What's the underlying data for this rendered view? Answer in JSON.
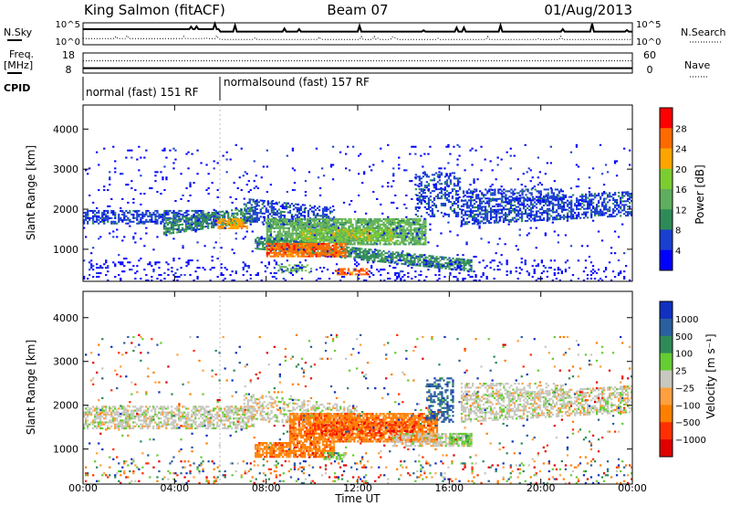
{
  "header": {
    "radar": "King Salmon (fitACF)",
    "beam": "Beam 07",
    "date": "01/Aug/2013"
  },
  "noise_panel": {
    "left_label": "N.Sky",
    "right_label": "N.Search",
    "left_ticks": [
      "10^5",
      "10^0"
    ],
    "right_ticks": [
      "10^5",
      "10^0"
    ]
  },
  "freq_panel": {
    "left_label_1": "Freq.",
    "left_label_2": "[MHz]",
    "right_label": "Nave",
    "left_ticks": [
      "18",
      "8"
    ],
    "right_ticks": [
      "60",
      "0"
    ]
  },
  "cpid": {
    "label": "CPID",
    "segments": [
      {
        "text": "normal (fast) 151 RF",
        "start_h": 0,
        "end_h": 6
      },
      {
        "text": "normalsound (fast) 157 RF",
        "start_h": 6,
        "end_h": 24
      }
    ]
  },
  "colors": {
    "power": [
      "#0000ff",
      "#1a3fd0",
      "#2e8b57",
      "#5fae5f",
      "#7ccd32",
      "#ffa500",
      "#ff6a00",
      "#ff0000"
    ],
    "velocity": [
      "#1030c0",
      "#2a5fa0",
      "#2e8b57",
      "#66cc33",
      "#c8c8c0",
      "#ffa040",
      "#ff7f00",
      "#ff3000",
      "#e00000"
    ],
    "ground": "#c8c8c0"
  },
  "chart_data": [
    {
      "type": "heatmap",
      "name": "power-panel",
      "xlabel": "",
      "ylabel": "Slant Range [km]",
      "x_ticks": [
        "00:00",
        "04:00",
        "08:00",
        "12:00",
        "16:00",
        "20:00",
        "00:00"
      ],
      "xlim_hours": [
        0,
        24
      ],
      "ylim_km": [
        200,
        4600
      ],
      "y_ticks": [
        1000,
        2000,
        3000,
        4000
      ],
      "colorbar": {
        "label": "Power [dB]",
        "ticks": [
          "4",
          "8",
          "12",
          "16",
          "20",
          "24",
          "28"
        ]
      },
      "features": [
        {
          "kind": "band",
          "t0": 0.0,
          "t1": 6.0,
          "r0": 1620,
          "r1": 1980,
          "slope": 0,
          "level": 1,
          "density": 0.55
        },
        {
          "kind": "band",
          "t0": 3.5,
          "t1": 7.5,
          "r0": 1350,
          "r1": 1750,
          "slope": 80,
          "level": 2,
          "density": 0.7
        },
        {
          "kind": "band",
          "t0": 5.8,
          "t1": 7.2,
          "r0": 1500,
          "r1": 1750,
          "slope": 0,
          "level": 5,
          "density": 0.8
        },
        {
          "kind": "band",
          "t0": 7.0,
          "t1": 11.0,
          "r0": 1700,
          "r1": 2250,
          "slope": -60,
          "level": 1,
          "density": 0.5
        },
        {
          "kind": "band",
          "t0": 8.0,
          "t1": 15.0,
          "r0": 1100,
          "r1": 1750,
          "slope": 0,
          "level": 3,
          "density": 0.8
        },
        {
          "kind": "band",
          "t0": 9.5,
          "t1": 13.5,
          "r0": 1200,
          "r1": 1500,
          "slope": 0,
          "level": 4,
          "density": 0.7
        },
        {
          "kind": "band",
          "t0": 7.5,
          "t1": 17.0,
          "r0": 1000,
          "r1": 1300,
          "slope": -60,
          "level": 2,
          "density": 0.75
        },
        {
          "kind": "band",
          "t0": 8.0,
          "t1": 11.5,
          "r0": 800,
          "r1": 1150,
          "slope": 0,
          "level": 6,
          "density": 0.85
        },
        {
          "kind": "band",
          "t0": 8.5,
          "t1": 10.0,
          "r0": 400,
          "r1": 600,
          "slope": 0,
          "level": 3,
          "density": 0.4
        },
        {
          "kind": "band",
          "t0": 11.0,
          "t1": 12.5,
          "r0": 350,
          "r1": 520,
          "slope": 0,
          "level": 6,
          "density": 0.6
        },
        {
          "kind": "band",
          "t0": 14.5,
          "t1": 16.5,
          "r0": 1800,
          "r1": 2900,
          "slope": 0,
          "level": 1,
          "density": 0.35
        },
        {
          "kind": "band",
          "t0": 16.5,
          "t1": 24.0,
          "r0": 1600,
          "r1": 2200,
          "slope": 30,
          "level": 1,
          "density": 0.55
        },
        {
          "kind": "band",
          "t0": 16.5,
          "t1": 21.0,
          "r0": 2200,
          "r1": 2500,
          "slope": 0,
          "level": 1,
          "density": 0.45
        },
        {
          "kind": "band",
          "t0": 0.0,
          "t1": 24.0,
          "r0": 200,
          "r1": 700,
          "slope": 0,
          "level": 0,
          "density": 0.12
        },
        {
          "kind": "band",
          "t0": 0.0,
          "t1": 24.0,
          "r0": 700,
          "r1": 3600,
          "slope": 0,
          "level": 0,
          "density": 0.025
        }
      ]
    },
    {
      "type": "heatmap",
      "name": "velocity-panel",
      "xlabel": "Time UT",
      "ylabel": "Slant Range [km]",
      "x_ticks": [
        "00:00",
        "04:00",
        "08:00",
        "12:00",
        "16:00",
        "20:00",
        "00:00"
      ],
      "xlim_hours": [
        0,
        24
      ],
      "ylim_km": [
        200,
        4600
      ],
      "y_ticks": [
        1000,
        2000,
        3000,
        4000
      ],
      "colorbar": {
        "label": "Velocity [m s⁻¹]",
        "ticks": [
          "1000",
          "500",
          "100",
          "25",
          "−25",
          "−100",
          "−500",
          "−1000"
        ]
      },
      "features": [
        {
          "kind": "band",
          "t0": 0.0,
          "t1": 7.5,
          "r0": 1450,
          "r1": 1980,
          "slope": 0,
          "level": 4,
          "density": 0.6
        },
        {
          "kind": "band",
          "t0": 7.0,
          "t1": 12.0,
          "r0": 1700,
          "r1": 2250,
          "slope": -60,
          "level": 4,
          "density": 0.45
        },
        {
          "kind": "band",
          "t0": 7.5,
          "t1": 11.0,
          "r0": 800,
          "r1": 1150,
          "slope": 0,
          "level": 6,
          "density": 0.75
        },
        {
          "kind": "band",
          "t0": 9.0,
          "t1": 15.5,
          "r0": 1150,
          "r1": 1800,
          "slope": 0,
          "level": 6,
          "density": 0.85
        },
        {
          "kind": "band",
          "t0": 10.0,
          "t1": 14.5,
          "r0": 1300,
          "r1": 1600,
          "slope": 0,
          "level": 7,
          "density": 0.4
        },
        {
          "kind": "band",
          "t0": 13.5,
          "t1": 17.0,
          "r0": 1050,
          "r1": 1350,
          "slope": 0,
          "level": 4,
          "density": 0.6
        },
        {
          "kind": "band",
          "t0": 16.0,
          "t1": 17.0,
          "r0": 1100,
          "r1": 1350,
          "slope": 0,
          "level": 3,
          "density": 0.7
        },
        {
          "kind": "band",
          "t0": 10.5,
          "t1": 11.5,
          "r0": 750,
          "r1": 900,
          "slope": 0,
          "level": 3,
          "density": 0.6
        },
        {
          "kind": "band",
          "t0": 15.0,
          "t1": 16.2,
          "r0": 1600,
          "r1": 2600,
          "slope": 0,
          "level": 1,
          "density": 0.45
        },
        {
          "kind": "band",
          "t0": 16.5,
          "t1": 24.0,
          "r0": 1600,
          "r1": 2200,
          "slope": 30,
          "level": 4,
          "density": 0.55
        },
        {
          "kind": "band",
          "t0": 16.5,
          "t1": 21.0,
          "r0": 2200,
          "r1": 2500,
          "slope": 0,
          "level": 4,
          "density": 0.4
        },
        {
          "kind": "band",
          "t0": 0.0,
          "t1": 24.0,
          "r0": 200,
          "r1": 700,
          "slope": 0,
          "level": -1,
          "density": 0.12
        },
        {
          "kind": "band",
          "t0": 0.0,
          "t1": 24.0,
          "r0": 700,
          "r1": 3600,
          "slope": 0,
          "level": -1,
          "density": 0.025
        }
      ]
    }
  ]
}
